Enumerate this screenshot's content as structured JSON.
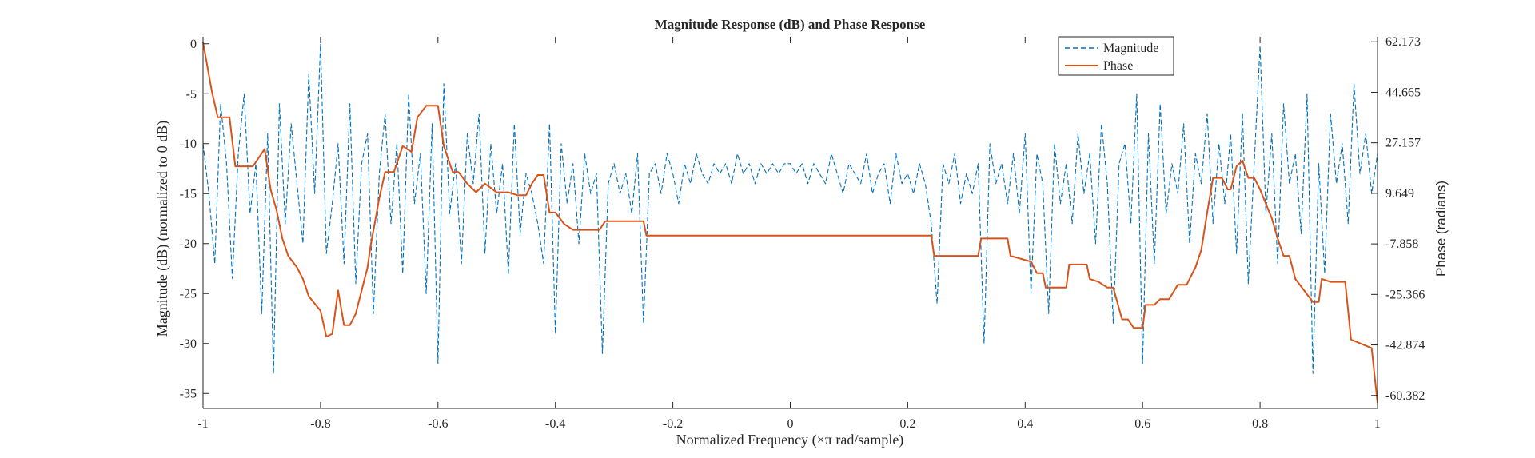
{
  "chart_data": {
    "type": "line",
    "title": "Magnitude Response (dB) and Phase Response",
    "xlabel": "Normalized Frequency (×π rad/sample)",
    "ylabel_left": "Magnitude (dB) (normalized to 0 dB)",
    "ylabel_right": "Phase (radians)",
    "xlim": [
      -1,
      1
    ],
    "ylim_left": [
      -36.5,
      0.7
    ],
    "ylim_right": [
      -64.88,
      63.9
    ],
    "x_ticks": [
      "-1",
      "-0.8",
      "-0.6",
      "-0.4",
      "-0.2",
      "0",
      "0.2",
      "0.4",
      "0.6",
      "0.8",
      "1"
    ],
    "y_left_ticks": [
      "0",
      "-5",
      "-10",
      "-15",
      "-20",
      "-25",
      "-30",
      "-35"
    ],
    "y_right_ticks": [
      "62.173",
      "44.665",
      "27.157",
      "9.649",
      "-7.858",
      "-25.366",
      "-42.874",
      "-60.382"
    ],
    "legend_position": "top-right",
    "colors": {
      "magnitude": "#0072BD",
      "phase": "#D95319",
      "axes": "#262626"
    },
    "series": [
      {
        "name": "Magnitude",
        "axis": "left",
        "style": "dashed",
        "x": [
          -1,
          -0.99,
          -0.98,
          -0.97,
          -0.96,
          -0.95,
          -0.94,
          -0.93,
          -0.92,
          -0.91,
          -0.9,
          -0.89,
          -0.88,
          -0.87,
          -0.86,
          -0.85,
          -0.84,
          -0.83,
          -0.82,
          -0.81,
          -0.8,
          -0.79,
          -0.78,
          -0.77,
          -0.76,
          -0.75,
          -0.74,
          -0.73,
          -0.72,
          -0.71,
          -0.7,
          -0.69,
          -0.68,
          -0.67,
          -0.66,
          -0.65,
          -0.64,
          -0.63,
          -0.62,
          -0.61,
          -0.6,
          -0.59,
          -0.58,
          -0.57,
          -0.56,
          -0.55,
          -0.54,
          -0.53,
          -0.52,
          -0.51,
          -0.5,
          -0.49,
          -0.48,
          -0.47,
          -0.46,
          -0.45,
          -0.44,
          -0.43,
          -0.42,
          -0.41,
          -0.4,
          -0.39,
          -0.38,
          -0.37,
          -0.36,
          -0.35,
          -0.34,
          -0.33,
          -0.32,
          -0.31,
          -0.3,
          -0.29,
          -0.28,
          -0.27,
          -0.26,
          -0.25,
          -0.24,
          -0.23,
          -0.22,
          -0.21,
          -0.2,
          -0.19,
          -0.18,
          -0.17,
          -0.16,
          -0.15,
          -0.14,
          -0.13,
          -0.12,
          -0.11,
          -0.1,
          -0.09,
          -0.08,
          -0.07,
          -0.06,
          -0.05,
          -0.04,
          -0.03,
          -0.02,
          -0.01,
          0,
          0.01,
          0.02,
          0.03,
          0.04,
          0.05,
          0.06,
          0.07,
          0.08,
          0.09,
          0.1,
          0.11,
          0.12,
          0.13,
          0.14,
          0.15,
          0.16,
          0.17,
          0.18,
          0.19,
          0.2,
          0.21,
          0.22,
          0.23,
          0.24,
          0.25,
          0.26,
          0.27,
          0.28,
          0.29,
          0.3,
          0.31,
          0.32,
          0.33,
          0.34,
          0.35,
          0.36,
          0.37,
          0.38,
          0.39,
          0.4,
          0.41,
          0.42,
          0.43,
          0.44,
          0.45,
          0.46,
          0.47,
          0.48,
          0.49,
          0.5,
          0.51,
          0.52,
          0.53,
          0.54,
          0.55,
          0.56,
          0.57,
          0.58,
          0.59,
          0.6,
          0.61,
          0.62,
          0.63,
          0.64,
          0.65,
          0.66,
          0.67,
          0.68,
          0.69,
          0.7,
          0.71,
          0.72,
          0.73,
          0.74,
          0.75,
          0.76,
          0.77,
          0.78,
          0.79,
          0.8,
          0.81,
          0.82,
          0.83,
          0.84,
          0.85,
          0.86,
          0.87,
          0.88,
          0.89,
          0.9,
          0.91,
          0.92,
          0.93,
          0.94,
          0.95,
          0.96,
          0.97,
          0.98,
          0.99,
          1
        ],
        "y": [
          -10,
          -15,
          -22,
          -6,
          -12,
          -23.5,
          -11,
          -5,
          -17,
          -12,
          -27,
          -9,
          -33,
          -6,
          -18,
          -8,
          -14,
          -20,
          -3,
          -15,
          0,
          -21,
          -16,
          -10,
          -22,
          -6,
          -24,
          -12,
          -9,
          -27,
          -13,
          -7,
          -18,
          -10,
          -23,
          -5,
          -16,
          -11,
          -25,
          -8,
          -32,
          -4,
          -17,
          -12,
          -22,
          -9,
          -14,
          -7,
          -21,
          -10,
          -17,
          -12,
          -23,
          -8,
          -19,
          -13,
          -15,
          -18,
          -22,
          -8,
          -29,
          -10,
          -16,
          -12,
          -20,
          -11,
          -15,
          -13,
          -31,
          -14,
          -12,
          -15,
          -13,
          -17,
          -11,
          -28,
          -13,
          -12,
          -15,
          -11,
          -13,
          -16,
          -12,
          -14,
          -11,
          -13,
          -14,
          -12,
          -13,
          -12,
          -14,
          -11,
          -13,
          -12,
          -14,
          -12,
          -13,
          -12,
          -13,
          -12,
          -12,
          -13,
          -12,
          -14,
          -12,
          -13,
          -14,
          -11,
          -13,
          -15,
          -12,
          -13,
          -14,
          -11,
          -15,
          -13,
          -12,
          -16,
          -11,
          -14,
          -13,
          -15,
          -12,
          -14,
          -18,
          -26,
          -12,
          -14,
          -11,
          -16,
          -13,
          -15,
          -12,
          -30,
          -10,
          -14,
          -12,
          -16,
          -11,
          -17,
          -9,
          -25,
          -11,
          -14,
          -27,
          -10,
          -16,
          -12,
          -18,
          -9,
          -15,
          -11,
          -20,
          -8,
          -14,
          -28,
          -12,
          -10,
          -18,
          -5,
          -32,
          -9,
          -22,
          -6,
          -17,
          -12,
          -15,
          -8,
          -20,
          -11,
          -14,
          -7,
          -18,
          -10,
          -16,
          -9,
          -21,
          -7,
          -24,
          -12,
          -0.2,
          -17,
          -9,
          -22,
          -6,
          -14,
          -11,
          -19,
          -5,
          -33,
          -12,
          -23,
          -7,
          -14,
          -10,
          -18,
          -4,
          -13,
          -9,
          -15,
          -11
        ]
      },
      {
        "name": "Phase",
        "axis": "right",
        "style": "solid",
        "x": [
          -1,
          -0.985,
          -0.975,
          -0.955,
          -0.945,
          -0.915,
          -0.895,
          -0.885,
          -0.875,
          -0.865,
          -0.855,
          -0.84,
          -0.83,
          -0.82,
          -0.8,
          -0.79,
          -0.78,
          -0.77,
          -0.76,
          -0.75,
          -0.74,
          -0.72,
          -0.715,
          -0.7,
          -0.69,
          -0.675,
          -0.66,
          -0.645,
          -0.635,
          -0.62,
          -0.6,
          -0.59,
          -0.575,
          -0.565,
          -0.55,
          -0.535,
          -0.52,
          -0.5,
          -0.48,
          -0.465,
          -0.45,
          -0.44,
          -0.43,
          -0.42,
          -0.41,
          -0.4,
          -0.385,
          -0.37,
          -0.36,
          -0.325,
          -0.315,
          -0.25,
          -0.245,
          0.24,
          0.245,
          0.32,
          0.325,
          0.37,
          0.375,
          0.41,
          0.42,
          0.43,
          0.435,
          0.47,
          0.475,
          0.505,
          0.51,
          0.525,
          0.54,
          0.55,
          0.565,
          0.575,
          0.585,
          0.6,
          0.605,
          0.62,
          0.63,
          0.645,
          0.66,
          0.675,
          0.69,
          0.7,
          0.71,
          0.72,
          0.735,
          0.745,
          0.75,
          0.76,
          0.77,
          0.78,
          0.79,
          0.8,
          0.81,
          0.82,
          0.83,
          0.84,
          0.85,
          0.86,
          0.875,
          0.89,
          0.9,
          0.905,
          0.92,
          0.945,
          0.955,
          0.99,
          1
        ],
        "y": [
          62,
          45,
          36,
          36,
          19,
          19,
          25,
          11,
          4,
          -6,
          -12,
          -16,
          -20,
          -26,
          -31,
          -40,
          -39,
          -24,
          -36,
          -36,
          -32,
          -16,
          -9,
          8,
          17,
          17,
          26,
          24,
          36,
          40,
          40,
          26,
          17,
          17,
          13,
          10,
          13,
          10,
          10,
          9,
          9,
          13,
          16,
          16,
          3,
          3,
          -1,
          -3,
          -3,
          -3,
          0,
          0,
          -5,
          -5,
          -12,
          -12,
          -6,
          -6,
          -12,
          -14,
          -18,
          -18,
          -23,
          -23,
          -15,
          -15,
          -20,
          -21,
          -23,
          -23,
          -34,
          -34,
          -37,
          -37,
          -29,
          -29,
          -27,
          -27,
          -22,
          -22,
          -16,
          -10,
          3,
          15,
          15,
          11,
          11,
          19,
          21,
          15,
          15,
          11,
          6,
          1,
          -6,
          -12,
          -12,
          -20,
          -24,
          -28,
          -28,
          -20,
          -21,
          -21,
          -41,
          -44,
          -63
        ]
      }
    ]
  }
}
